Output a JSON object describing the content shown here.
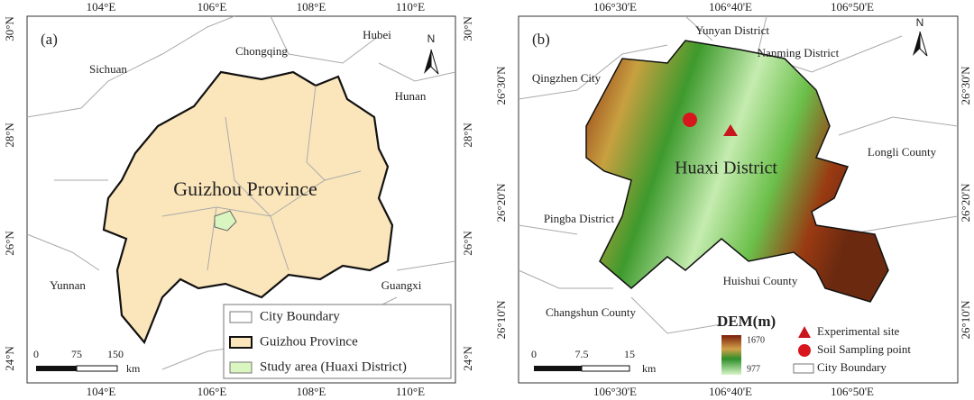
{
  "panels": [
    {
      "label": "(a)",
      "lon_ticks": [
        "104°E",
        "106°E",
        "108°E",
        "110°E"
      ],
      "lat_ticks": [
        "30°N",
        "28°N",
        "26°N",
        "24°N"
      ],
      "places": [
        "Sichuan",
        "Chongqing",
        "Hubei",
        "Hunan",
        "Yunnan",
        "Guangxi"
      ],
      "region_label": "Guizhou Province",
      "north": "N",
      "scale": [
        "0",
        "75",
        "150",
        "km"
      ],
      "legend": [
        "City Boundary",
        "Guizhou Province",
        "Study area (Huaxi District)"
      ]
    },
    {
      "label": "(b)",
      "lon_ticks": [
        "106°30'E",
        "106°40'E",
        "106°50'E"
      ],
      "lat_ticks": [
        "26°30'N",
        "26°20'N",
        "26°10'N"
      ],
      "places": [
        "Yunyan District",
        "Nanming District",
        "Qingzhen City",
        "Longli County",
        "Pingba District",
        "Huishui County",
        "Changshun County"
      ],
      "region_label": "Huaxi District",
      "north": "N",
      "scale": [
        "0",
        "7.5",
        "15",
        "km"
      ],
      "dem_title": "DEM(m)",
      "dem_range": [
        "1670",
        "977"
      ],
      "legend": [
        "Experimental site",
        "Soil Sampling point",
        "City Boundary"
      ]
    }
  ]
}
